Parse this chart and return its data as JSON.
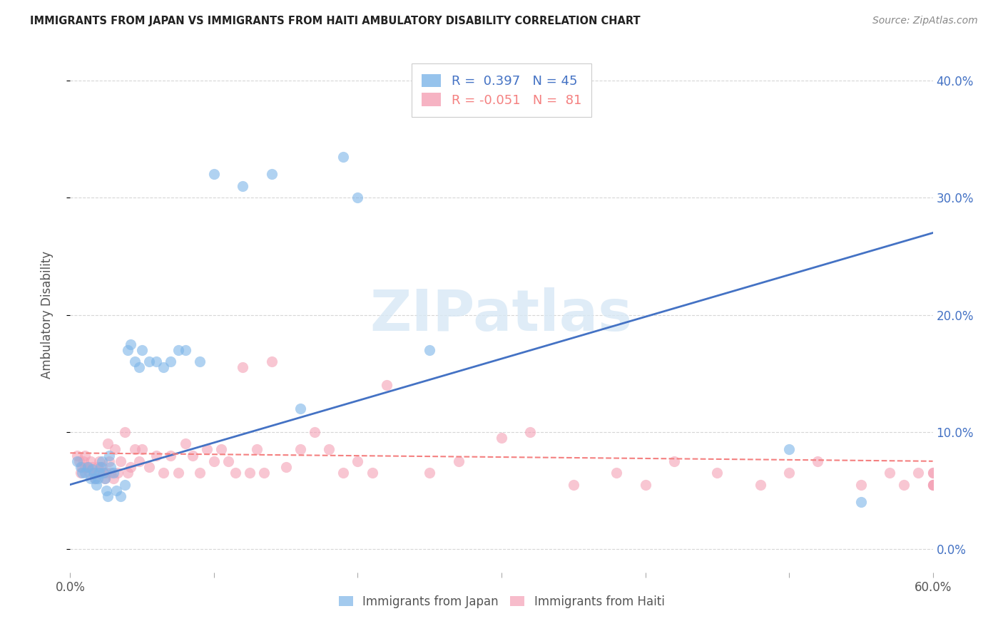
{
  "title": "IMMIGRANTS FROM JAPAN VS IMMIGRANTS FROM HAITI AMBULATORY DISABILITY CORRELATION CHART",
  "source": "Source: ZipAtlas.com",
  "ylabel": "Ambulatory Disability",
  "xlabel": "",
  "xlim": [
    0.0,
    0.6
  ],
  "ylim": [
    -0.02,
    0.42
  ],
  "yticks": [
    0.0,
    0.1,
    0.2,
    0.3,
    0.4
  ],
  "xticks": [
    0.0,
    0.6
  ],
  "xticks_minor": [
    0.1,
    0.2,
    0.3,
    0.4,
    0.5
  ],
  "japan_color": "#7cb4e8",
  "haiti_color": "#f4a0b5",
  "japan_line_color": "#4472c4",
  "haiti_line_color": "#f48080",
  "japan_R": 0.397,
  "japan_N": 45,
  "haiti_R": -0.051,
  "haiti_N": 81,
  "watermark": "ZIPatlas",
  "japan_line_x0": 0.0,
  "japan_line_y0": 0.055,
  "japan_line_x1": 0.6,
  "japan_line_y1": 0.27,
  "haiti_line_x0": 0.0,
  "haiti_line_y0": 0.082,
  "haiti_line_x1": 0.6,
  "haiti_line_y1": 0.075,
  "japan_x": [
    0.005,
    0.007,
    0.008,
    0.01,
    0.012,
    0.014,
    0.015,
    0.016,
    0.017,
    0.018,
    0.019,
    0.02,
    0.021,
    0.022,
    0.023,
    0.024,
    0.025,
    0.026,
    0.027,
    0.028,
    0.03,
    0.032,
    0.035,
    0.038,
    0.04,
    0.042,
    0.045,
    0.048,
    0.05,
    0.055,
    0.06,
    0.065,
    0.07,
    0.075,
    0.08,
    0.09,
    0.1,
    0.12,
    0.14,
    0.16,
    0.19,
    0.2,
    0.25,
    0.5,
    0.55
  ],
  "japan_y": [
    0.075,
    0.07,
    0.065,
    0.065,
    0.07,
    0.06,
    0.068,
    0.065,
    0.06,
    0.055,
    0.06,
    0.065,
    0.07,
    0.075,
    0.065,
    0.06,
    0.05,
    0.045,
    0.08,
    0.07,
    0.065,
    0.05,
    0.045,
    0.055,
    0.17,
    0.175,
    0.16,
    0.155,
    0.17,
    0.16,
    0.16,
    0.155,
    0.16,
    0.17,
    0.17,
    0.16,
    0.32,
    0.31,
    0.32,
    0.12,
    0.335,
    0.3,
    0.17,
    0.085,
    0.04
  ],
  "haiti_x": [
    0.005,
    0.006,
    0.007,
    0.008,
    0.009,
    0.01,
    0.01,
    0.012,
    0.013,
    0.014,
    0.015,
    0.016,
    0.017,
    0.018,
    0.019,
    0.02,
    0.021,
    0.022,
    0.023,
    0.024,
    0.025,
    0.026,
    0.027,
    0.028,
    0.03,
    0.031,
    0.033,
    0.035,
    0.038,
    0.04,
    0.042,
    0.045,
    0.048,
    0.05,
    0.055,
    0.06,
    0.065,
    0.07,
    0.075,
    0.08,
    0.085,
    0.09,
    0.095,
    0.1,
    0.105,
    0.11,
    0.115,
    0.12,
    0.125,
    0.13,
    0.135,
    0.14,
    0.15,
    0.16,
    0.17,
    0.18,
    0.19,
    0.2,
    0.21,
    0.22,
    0.25,
    0.27,
    0.3,
    0.32,
    0.35,
    0.38,
    0.4,
    0.42,
    0.45,
    0.48,
    0.5,
    0.52,
    0.55,
    0.57,
    0.58,
    0.59,
    0.6,
    0.6,
    0.6,
    0.6,
    0.6
  ],
  "haiti_y": [
    0.08,
    0.075,
    0.065,
    0.07,
    0.075,
    0.07,
    0.08,
    0.07,
    0.065,
    0.075,
    0.07,
    0.065,
    0.06,
    0.065,
    0.07,
    0.075,
    0.065,
    0.07,
    0.065,
    0.06,
    0.065,
    0.09,
    0.075,
    0.065,
    0.06,
    0.085,
    0.065,
    0.075,
    0.1,
    0.065,
    0.07,
    0.085,
    0.075,
    0.085,
    0.07,
    0.08,
    0.065,
    0.08,
    0.065,
    0.09,
    0.08,
    0.065,
    0.085,
    0.075,
    0.085,
    0.075,
    0.065,
    0.155,
    0.065,
    0.085,
    0.065,
    0.16,
    0.07,
    0.085,
    0.1,
    0.085,
    0.065,
    0.075,
    0.065,
    0.14,
    0.065,
    0.075,
    0.095,
    0.1,
    0.055,
    0.065,
    0.055,
    0.075,
    0.065,
    0.055,
    0.065,
    0.075,
    0.055,
    0.065,
    0.055,
    0.065,
    0.055,
    0.065,
    0.055,
    0.065,
    0.055
  ]
}
